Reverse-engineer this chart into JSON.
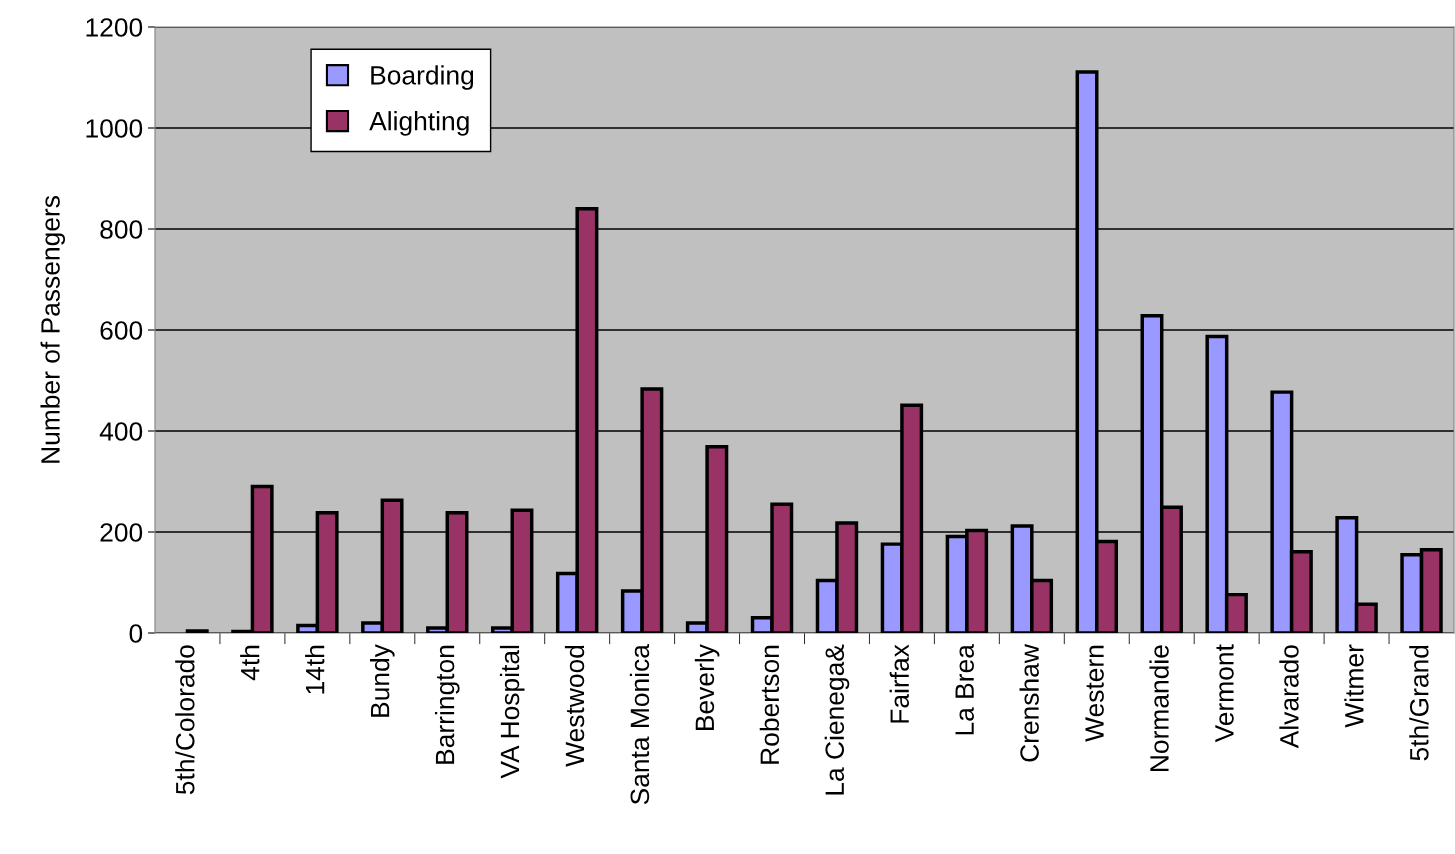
{
  "chart_data": {
    "type": "bar",
    "ylabel": "Number of Passengers",
    "categories": [
      "5th/Colorado",
      "4th",
      "14th",
      "Bundy",
      "Barrington",
      "VA Hospital",
      "Westwood",
      "Santa Monica",
      "Beverly",
      "Robertson",
      "La Cienega&",
      "Fairfax",
      "La Brea",
      "Crenshaw",
      "Western",
      "Normandie",
      "Vermont",
      "Alvarado",
      "Witmer",
      "5th/Grand"
    ],
    "series": [
      {
        "name": "Boarding",
        "color": "#9999ff",
        "values": [
          0,
          3,
          15,
          20,
          10,
          10,
          118,
          83,
          20,
          30,
          104,
          176,
          191,
          212,
          1111,
          628,
          587,
          477,
          228,
          155
        ]
      },
      {
        "name": "Alighting",
        "color": "#993366",
        "values": [
          4,
          290,
          238,
          263,
          238,
          243,
          840,
          483,
          369,
          255,
          218,
          451,
          203,
          104,
          181,
          249,
          76,
          161,
          57,
          165
        ]
      }
    ],
    "ylim": [
      0,
      1200
    ],
    "yticks": [
      0,
      200,
      400,
      600,
      800,
      1000,
      1200
    ],
    "grid": "y",
    "legend": "top left"
  }
}
